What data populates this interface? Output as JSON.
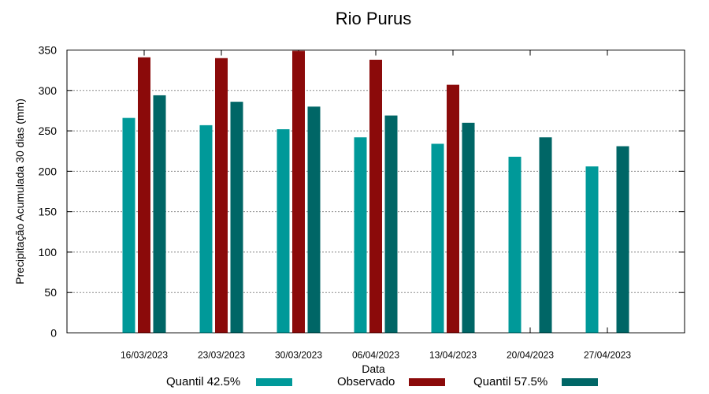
{
  "chart_data": {
    "type": "bar",
    "title": "Rio Purus",
    "xlabel": "Data",
    "ylabel": "Precipitação Acumulada 30 dias (mm)",
    "ylim": [
      0,
      350
    ],
    "yticks": [
      0,
      50,
      100,
      150,
      200,
      250,
      300,
      350
    ],
    "grid": true,
    "legend_position": "bottom",
    "categories": [
      "16/03/2023",
      "23/03/2023",
      "30/03/2023",
      "06/04/2023",
      "13/04/2023",
      "20/04/2023",
      "27/04/2023"
    ],
    "series": [
      {
        "name": "Quantil 42.5%",
        "color": "#009999",
        "values": [
          266,
          257,
          252,
          242,
          234,
          218,
          206
        ]
      },
      {
        "name": "Observado",
        "color": "#8b0a0a",
        "values": [
          341,
          340,
          349,
          338,
          307,
          null,
          null
        ]
      },
      {
        "name": "Quantil 57.5%",
        "color": "#006666",
        "values": [
          294,
          286,
          280,
          269,
          260,
          242,
          231
        ]
      }
    ]
  }
}
